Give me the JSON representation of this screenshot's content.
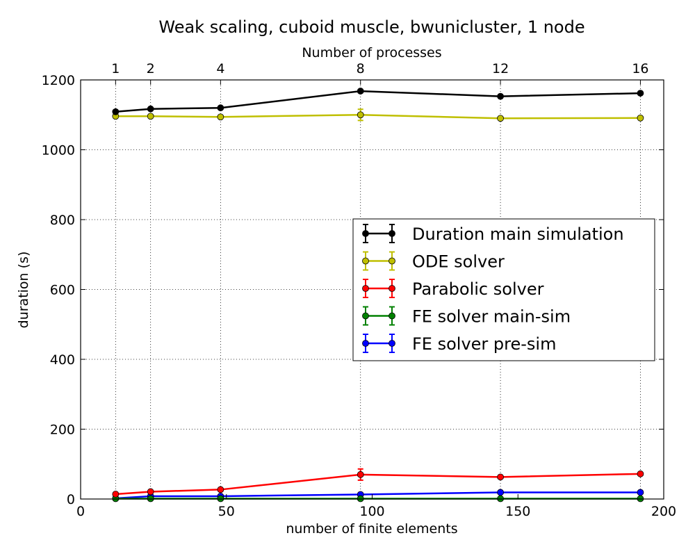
{
  "chart_data": {
    "type": "line",
    "title": "Weak scaling, cuboid muscle, bwunicluster, 1 node",
    "xlabel": "number of finite elements",
    "ylabel": "duration (s)",
    "top_xlabel": "Number of processes",
    "xlim": [
      0,
      200
    ],
    "ylim": [
      0,
      1200
    ],
    "xticks": [
      0,
      50,
      100,
      150,
      200
    ],
    "yticks": [
      0,
      200,
      400,
      600,
      800,
      1000,
      1200
    ],
    "top_ticks": [
      {
        "x": 12,
        "label": "1"
      },
      {
        "x": 24,
        "label": "2"
      },
      {
        "x": 48,
        "label": "4"
      },
      {
        "x": 96,
        "label": "8"
      },
      {
        "x": 144,
        "label": "12"
      },
      {
        "x": 192,
        "label": "16"
      }
    ],
    "grid": true,
    "legend_position": "center-right",
    "x": [
      12,
      24,
      48,
      96,
      144,
      192
    ],
    "series": [
      {
        "name": "Duration main simulation",
        "color": "#000000",
        "values": [
          1109,
          1117,
          1120,
          1168,
          1153,
          1162
        ],
        "errors": [
          3,
          3,
          3,
          4,
          3,
          3
        ]
      },
      {
        "name": "ODE solver",
        "color": "#bfbf00",
        "values": [
          1096,
          1096,
          1094,
          1100,
          1090,
          1091
        ],
        "errors": [
          3,
          3,
          3,
          16,
          3,
          3
        ]
      },
      {
        "name": "Parabolic solver",
        "color": "#ff0000",
        "values": [
          14,
          21,
          27,
          70,
          63,
          72
        ],
        "errors": [
          2,
          2,
          3,
          16,
          3,
          2
        ]
      },
      {
        "name": "FE solver main-sim",
        "color": "#008000",
        "values": [
          1,
          1,
          1,
          1,
          1,
          1
        ],
        "errors": [
          0,
          0,
          0,
          0,
          0,
          0
        ]
      },
      {
        "name": "FE solver pre-sim",
        "color": "#0000ff",
        "values": [
          2,
          8,
          8,
          13,
          19,
          19
        ],
        "errors": [
          1,
          1,
          1,
          1,
          1,
          1
        ]
      }
    ]
  }
}
